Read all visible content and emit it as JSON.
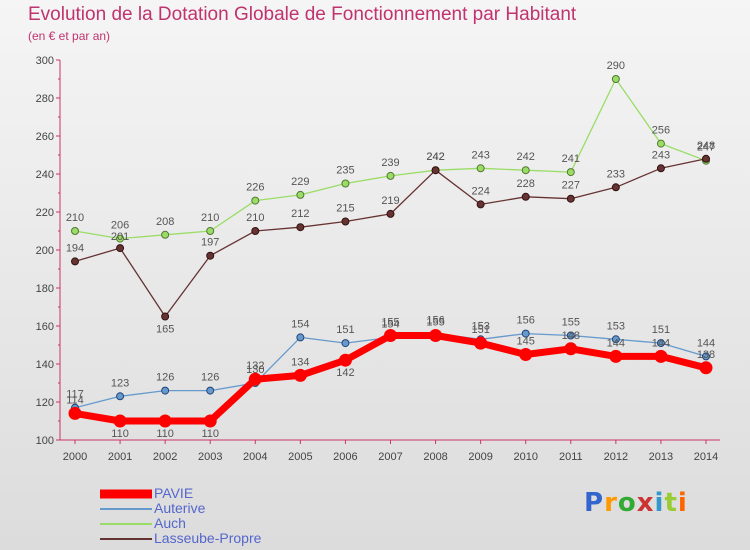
{
  "chart_data": {
    "type": "line",
    "title": "Evolution de la Dotation Globale de Fonctionnement par Habitant",
    "subtitle": "(en € et par an)",
    "xlabel": "",
    "ylabel": "",
    "x": [
      "2000",
      "2001",
      "2002",
      "2003",
      "2004",
      "2005",
      "2006",
      "2007",
      "2008",
      "2009",
      "2010",
      "2011",
      "2012",
      "2013",
      "2014"
    ],
    "ylim": [
      100,
      300
    ],
    "yticks": [
      100,
      120,
      140,
      160,
      180,
      200,
      220,
      240,
      260,
      280,
      300
    ],
    "grid": false,
    "legend_position": "bottom-left",
    "series": [
      {
        "name": "PAVIE",
        "color": "#ff0000",
        "values": [
          114,
          110,
          110,
          110,
          132,
          134,
          142,
          155,
          155,
          151,
          145,
          148,
          144,
          144,
          138
        ]
      },
      {
        "name": "Auterive",
        "color": "#6699cc",
        "values": [
          117,
          123,
          126,
          126,
          130,
          154,
          151,
          154,
          156,
          153,
          156,
          155,
          153,
          151,
          144
        ]
      },
      {
        "name": "Auch",
        "color": "#99dd66",
        "values": [
          210,
          206,
          208,
          210,
          226,
          229,
          235,
          239,
          242,
          243,
          242,
          241,
          290,
          256,
          247
        ]
      },
      {
        "name": "Lasseube-Propre",
        "color": "#663333",
        "values": [
          194,
          201,
          165,
          197,
          210,
          212,
          215,
          219,
          242,
          224,
          228,
          227,
          233,
          243,
          248
        ]
      }
    ]
  },
  "logo": {
    "letters": [
      "P",
      "r",
      "o",
      "x",
      "i",
      "t",
      "i"
    ],
    "colors": [
      "#3366cc",
      "#ff9900",
      "#33aa33",
      "#cc3333",
      "#3399cc",
      "#99cc33",
      "#ff6600"
    ]
  }
}
